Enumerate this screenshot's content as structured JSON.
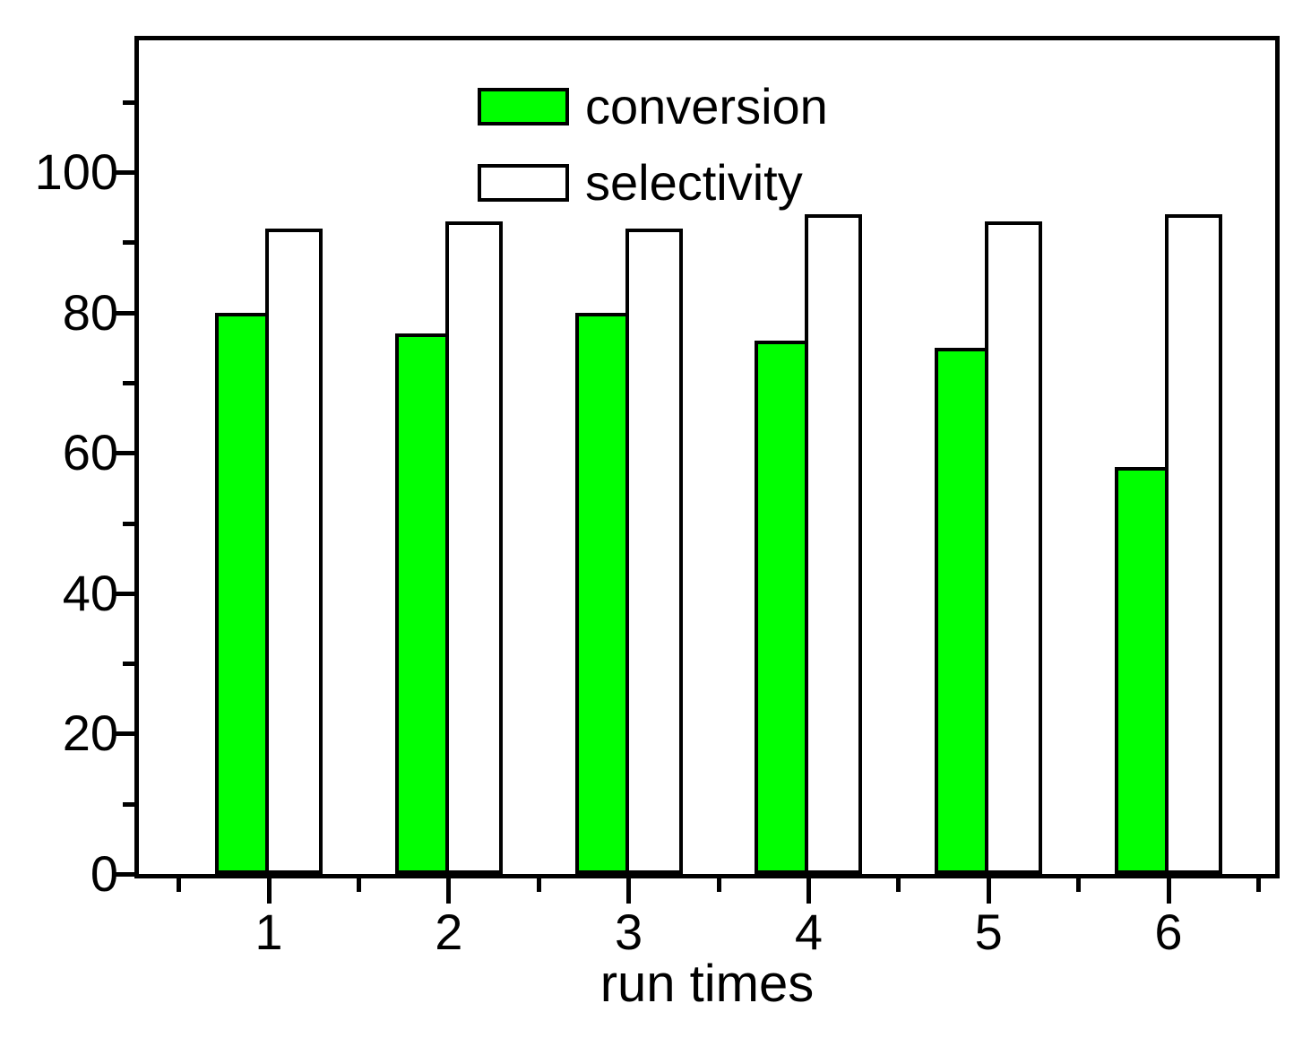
{
  "chart_data": {
    "type": "bar",
    "title": "",
    "xlabel": "run times",
    "ylabel": "",
    "categories": [
      "1",
      "2",
      "3",
      "4",
      "5",
      "6"
    ],
    "series": [
      {
        "name": "conversion",
        "color": "#00ff00",
        "values": [
          80,
          77,
          80,
          76,
          75,
          58
        ]
      },
      {
        "name": "selectivity",
        "color": "#ffffff",
        "values": [
          92,
          93,
          92,
          94,
          93,
          94
        ]
      }
    ],
    "ylim": [
      0,
      119
    ],
    "yticks_major": [
      0,
      20,
      40,
      60,
      80,
      100
    ],
    "yticks_minor": [
      10,
      30,
      50,
      70,
      90,
      110
    ],
    "grid": false,
    "legend": {
      "position": "top-center-inside",
      "items": [
        "conversion",
        "selectivity"
      ]
    },
    "bar_outline_color": "#000000",
    "axis_color": "#000000",
    "background_color": "#ffffff"
  }
}
